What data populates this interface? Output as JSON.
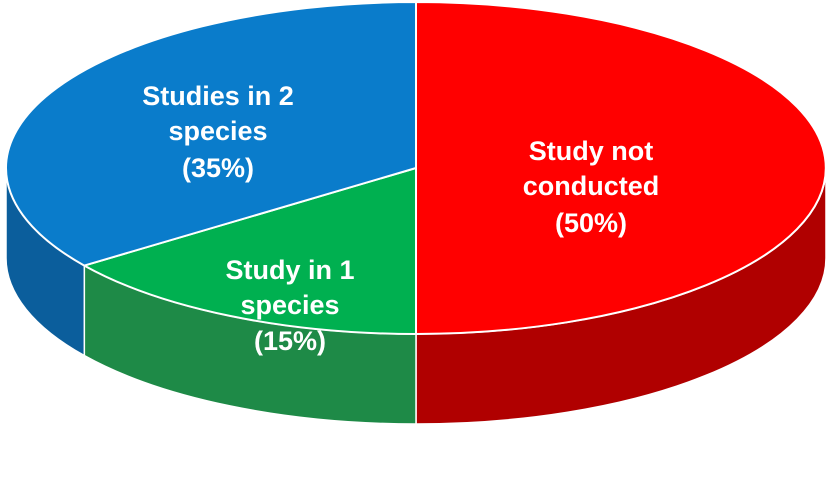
{
  "chart_data": {
    "type": "pie",
    "style": "3d",
    "slices": [
      {
        "name": "Study not conducted",
        "value": 50,
        "label_lines": [
          "Study not",
          "conducted",
          "(50%)"
        ],
        "color": "#ff0000",
        "side_color": "#b00000"
      },
      {
        "name": "Study in 1 species",
        "value": 15,
        "label_lines": [
          "Study in 1",
          "species",
          "(15%)"
        ],
        "color": "#00b050",
        "side_color": "#1e8a47"
      },
      {
        "name": "Studies in 2 species",
        "value": 35,
        "label_lines": [
          "Studies in 2",
          "species",
          "(35%)"
        ],
        "color": "#0a7ccb",
        "side_color": "#0b5e9c"
      }
    ]
  }
}
